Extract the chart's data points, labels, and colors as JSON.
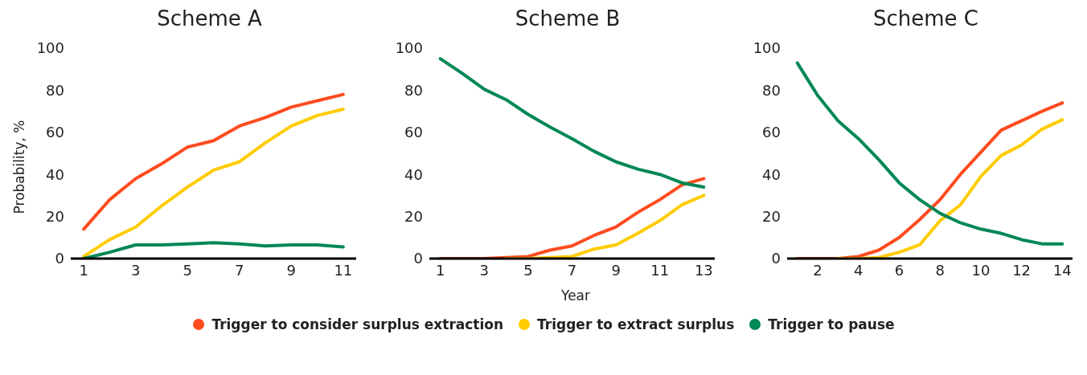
{
  "chart_data": [
    {
      "type": "line",
      "title": "Scheme A",
      "ylabel": "Probability, %",
      "x": [
        1,
        2,
        3,
        4,
        5,
        6,
        7,
        8,
        9,
        10,
        11
      ],
      "xlim": [
        0.5,
        11.5
      ],
      "xticks": [
        1,
        3,
        5,
        7,
        9,
        11
      ],
      "ylim": [
        0,
        100
      ],
      "yticks": [
        0,
        20,
        40,
        60,
        80,
        100
      ],
      "grid": false,
      "marker": "none",
      "line_style": "solid",
      "series": [
        {
          "color": "#ff4b1f",
          "values": [
            14,
            28,
            38,
            45,
            53,
            56,
            63,
            67,
            72,
            75,
            78
          ]
        },
        {
          "color": "#ffcc00",
          "values": [
            1,
            9,
            15,
            25,
            34,
            42,
            46,
            55,
            63,
            68,
            71
          ]
        },
        {
          "color": "#008855",
          "values": [
            0,
            3,
            6.5,
            6.5,
            7,
            7.5,
            7,
            6,
            6.5,
            6.5,
            5.5
          ]
        }
      ]
    },
    {
      "type": "line",
      "title": "Scheme B",
      "xlabel": "Year",
      "x": [
        1,
        2,
        3,
        4,
        5,
        6,
        7,
        8,
        9,
        10,
        11,
        12,
        13
      ],
      "xlim": [
        0.5,
        13.5
      ],
      "xticks": [
        1,
        3,
        5,
        7,
        9,
        11,
        13
      ],
      "ylim": [
        0,
        100
      ],
      "yticks": [
        0,
        20,
        40,
        60,
        80,
        100
      ],
      "grid": false,
      "legend": "bottom",
      "marker": "none",
      "line_style": "solid",
      "series": [
        {
          "name": "Trigger to consider surplus extraction",
          "color": "#ff4b1f",
          "values": [
            0,
            0,
            0,
            0.5,
            1,
            4,
            6,
            11,
            15,
            22,
            28,
            35,
            38
          ]
        },
        {
          "name": "Trigger to extract surplus",
          "color": "#ffcc00",
          "values": [
            null,
            null,
            null,
            0,
            0,
            0.5,
            1,
            4.5,
            6.5,
            12,
            18,
            25.5,
            30
          ]
        },
        {
          "name": "Trigger to pause",
          "color": "#008855",
          "values": [
            95,
            88,
            80.5,
            75.5,
            68.5,
            62.5,
            57,
            51,
            46,
            42.5,
            40,
            36,
            34
          ]
        }
      ]
    },
    {
      "type": "line",
      "title": "Scheme C",
      "x": [
        1,
        2,
        3,
        4,
        5,
        6,
        7,
        8,
        9,
        10,
        11,
        12,
        13,
        14
      ],
      "xlim": [
        0.5,
        14.5
      ],
      "xticks": [
        2,
        4,
        6,
        8,
        10,
        12,
        14
      ],
      "ylim": [
        0,
        100
      ],
      "yticks": [
        0,
        20,
        40,
        60,
        80,
        100
      ],
      "grid": false,
      "marker": "none",
      "line_style": "solid",
      "series": [
        {
          "color": "#ff4b1f",
          "values": [
            0,
            0,
            0,
            1,
            4,
            10,
            18.5,
            28,
            40,
            50.5,
            61,
            65.5,
            70,
            74
          ]
        },
        {
          "color": "#ffcc00",
          "values": [
            null,
            null,
            0,
            0,
            0.5,
            3,
            6.5,
            18,
            25.5,
            39,
            49,
            54,
            61.5,
            66
          ]
        },
        {
          "color": "#008855",
          "values": [
            93,
            77.5,
            65.5,
            57,
            47,
            36,
            28,
            21.5,
            17,
            14,
            12,
            9,
            7,
            7
          ]
        }
      ]
    }
  ]
}
